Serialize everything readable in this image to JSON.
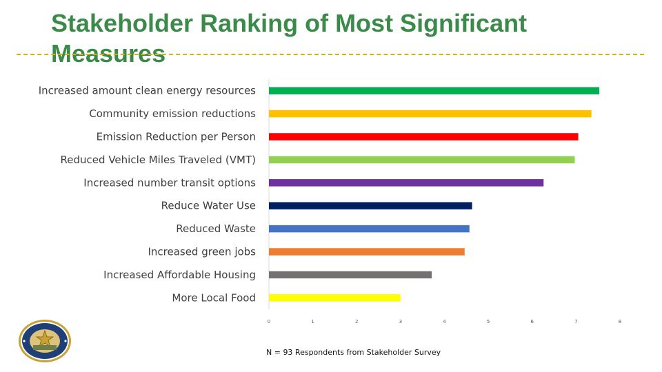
{
  "slide": {
    "title": "Stakeholder Ranking of Most Significant Measures",
    "footnote": "N = 93 Respondents from Stakeholder Survey"
  },
  "chart_data": {
    "type": "bar",
    "orientation": "horizontal",
    "title": "",
    "xlabel": "",
    "ylabel": "",
    "xlim": [
      0,
      8
    ],
    "x_ticks": [
      0,
      1,
      2,
      3,
      4,
      5,
      6,
      7,
      8
    ],
    "grid": false,
    "categories": [
      "Increased amount clean energy resources",
      "Community emission reductions",
      "Emission Reduction per Person",
      "Reduced Vehicle Miles Traveled (VMT)",
      "Increased number transit options",
      "Reduce Water Use",
      "Reduced Waste",
      "Increased green jobs",
      "Increased Affordable Housing",
      "More Local Food"
    ],
    "values": [
      7.53,
      7.35,
      7.05,
      6.97,
      6.26,
      4.63,
      4.57,
      4.46,
      3.71,
      3.0
    ],
    "colors": [
      "#00b050",
      "#ffc000",
      "#ff0000",
      "#92d050",
      "#7030a0",
      "#002060",
      "#4472c4",
      "#ed7d31",
      "#767171",
      "#ffff00"
    ]
  },
  "icons": {
    "seal": "city-of-houston-seal-icon"
  }
}
